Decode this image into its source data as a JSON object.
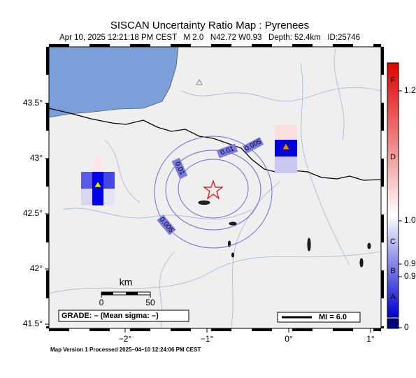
{
  "title": "SISCAN Uncertainty Ratio Map : Pyrenees",
  "subtitle": "Apr 10, 2025 12:21:18 PM CEST   M 2.0   N42.72 W0.93   Depth: 52.4km   ID:25746",
  "map": {
    "lat_ticks": [
      {
        "value": 43.5,
        "label": "43.5°"
      },
      {
        "value": 43,
        "label": "43°"
      },
      {
        "value": 42.5,
        "label": "42.5°"
      },
      {
        "value": 42,
        "label": "42°"
      },
      {
        "value": 41.5,
        "label": "41.5°"
      }
    ],
    "lon_ticks": [
      {
        "value": -2,
        "label": "−2°"
      },
      {
        "value": -1,
        "label": "−1°"
      },
      {
        "value": 0,
        "label": "0°"
      },
      {
        "value": 1,
        "label": "1°"
      }
    ],
    "contour_labels": [
      0.01,
      0.005,
      0.01,
      0.005
    ]
  },
  "scale_bar": {
    "unit": "km",
    "ticks": [
      0,
      50
    ]
  },
  "grade": "GRADE: – (Mean sigma: –)",
  "mi": "MI = 6.0",
  "colorbar": {
    "classes": [
      "F",
      "D",
      "C",
      "B",
      "A"
    ],
    "ticks": [
      1.2,
      {
        "value": 1.0,
        "label": "1.0"
      },
      0.9,
      0.9,
      0
    ]
  },
  "footer": "Map Version 1 Processed 2025–04–10 12:24:06 PM CEST"
}
